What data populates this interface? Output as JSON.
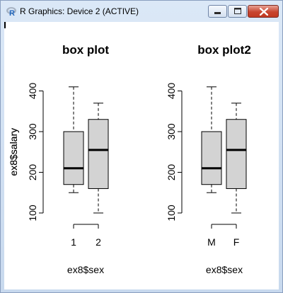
{
  "window": {
    "title": "R Graphics: Device 2 (ACTIVE)"
  },
  "icons": {
    "app": "r-logo-icon",
    "minimize": "minimize-icon",
    "maximize": "maximize-icon",
    "close": "close-icon"
  },
  "chart_data": [
    {
      "type": "boxplot",
      "title": "box plot",
      "xlabel": "ex8$sex",
      "ylabel": "ex8$salary",
      "categories": [
        "1",
        "2"
      ],
      "yticks": [
        100,
        200,
        300,
        400
      ],
      "ylim": [
        86,
        420
      ],
      "boxes": [
        {
          "category": "1",
          "min": 150,
          "q1": 170,
          "median": 210,
          "q3": 300,
          "max": 410
        },
        {
          "category": "2",
          "min": 100,
          "q1": 160,
          "median": 255,
          "q3": 330,
          "max": 370
        }
      ],
      "box_fill": "#d3d3d3",
      "grid": false
    },
    {
      "type": "boxplot",
      "title": "box plot2",
      "xlabel": "ex8$sex",
      "ylabel": "ex8$salary",
      "categories": [
        "M",
        "F"
      ],
      "yticks": [
        100,
        200,
        300,
        400
      ],
      "ylim": [
        86,
        420
      ],
      "boxes": [
        {
          "category": "M",
          "min": 150,
          "q1": 170,
          "median": 210,
          "q3": 300,
          "max": 410
        },
        {
          "category": "F",
          "min": 100,
          "q1": 160,
          "median": 255,
          "q3": 330,
          "max": 370
        }
      ],
      "box_fill": "#d3d3d3",
      "grid": false
    }
  ]
}
